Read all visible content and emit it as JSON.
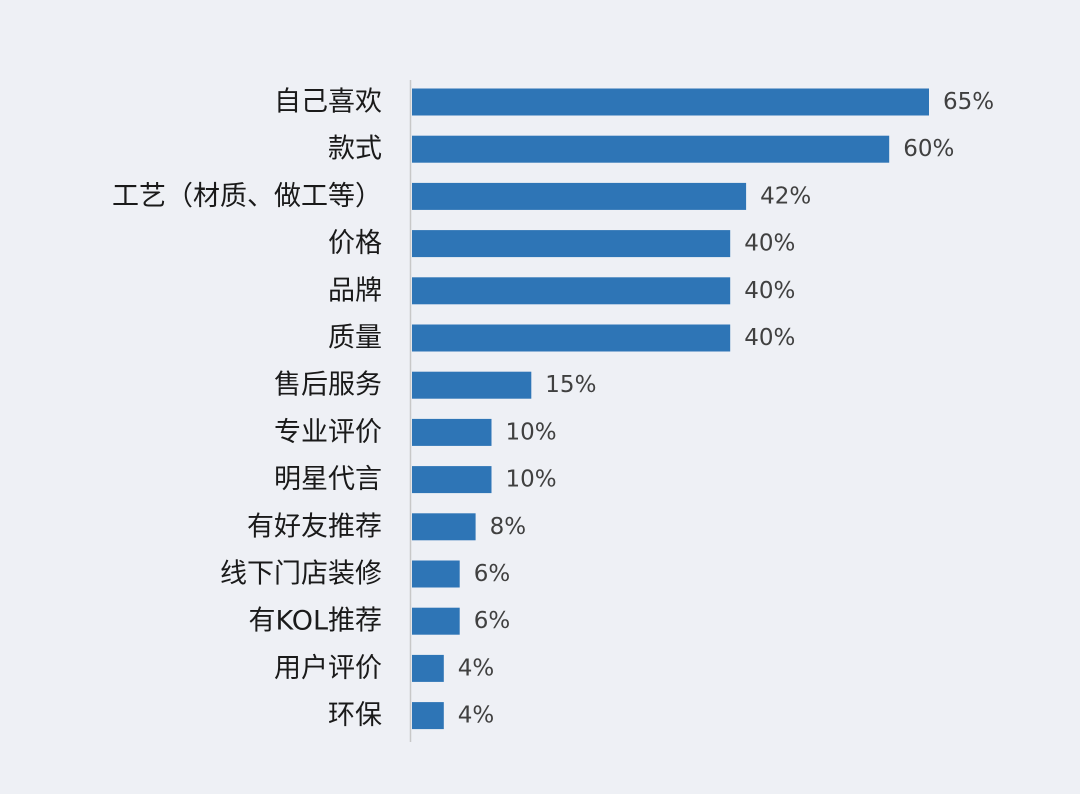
{
  "chart_data": {
    "type": "bar",
    "orientation": "horizontal",
    "categories": [
      "自己喜欢",
      "款式",
      "工艺（材质、做工等）",
      "价格",
      "品牌",
      "质量",
      "售后服务",
      "专业评价",
      "明星代言",
      "有好友推荐",
      "线下门店装修",
      "有KOL推荐",
      "用户评价",
      "环保"
    ],
    "values": [
      65,
      60,
      42,
      40,
      40,
      40,
      15,
      10,
      10,
      8,
      6,
      6,
      4,
      4
    ],
    "value_labels": [
      "65%",
      "60%",
      "42%",
      "40%",
      "40%",
      "40%",
      "15%",
      "10%",
      "10%",
      "8%",
      "6%",
      "6%",
      "4%",
      "4%"
    ],
    "unit": "%",
    "xlim": [
      0,
      65
    ],
    "grid": false,
    "legend": "none",
    "colors": {
      "bar": "#2e75b6",
      "axis": "#c8c8c8",
      "background": "#eef0f5",
      "category_text": "#1a1a1a",
      "value_text": "#404040"
    }
  }
}
